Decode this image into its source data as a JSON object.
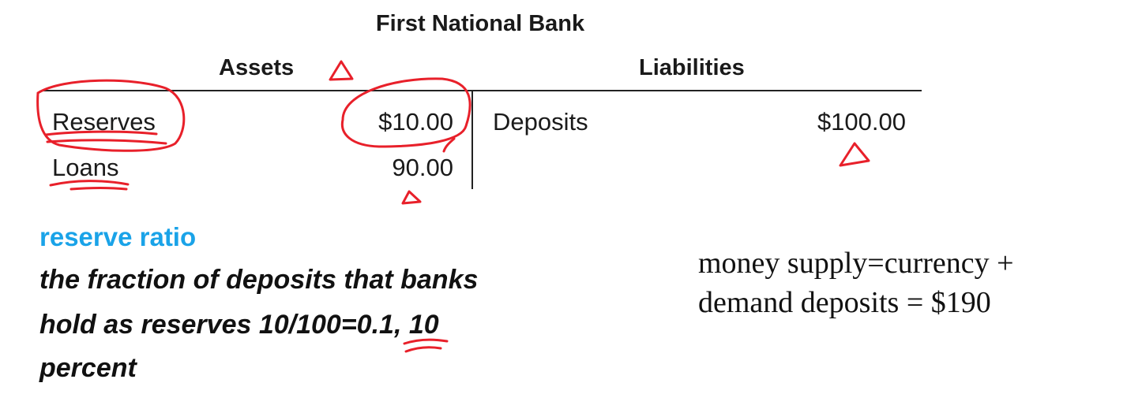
{
  "table": {
    "title": "First National Bank",
    "assets_header": "Assets",
    "liabilities_header": "Liabilities",
    "assets": [
      {
        "label": "Reserves",
        "value": "$10.00"
      },
      {
        "label": "Loans",
        "value": "90.00"
      }
    ],
    "liabilities": [
      {
        "label": "Deposits",
        "value": "$100.00"
      }
    ]
  },
  "definition": {
    "term": "reserve ratio",
    "lines": [
      "the fraction of deposits that banks",
      "hold as reserves 10/100=0.1, 10",
      "percent"
    ]
  },
  "money_supply": {
    "lines": [
      "money supply=currency +",
      "demand deposits = $190"
    ]
  },
  "annotation_color": "#e8202a"
}
